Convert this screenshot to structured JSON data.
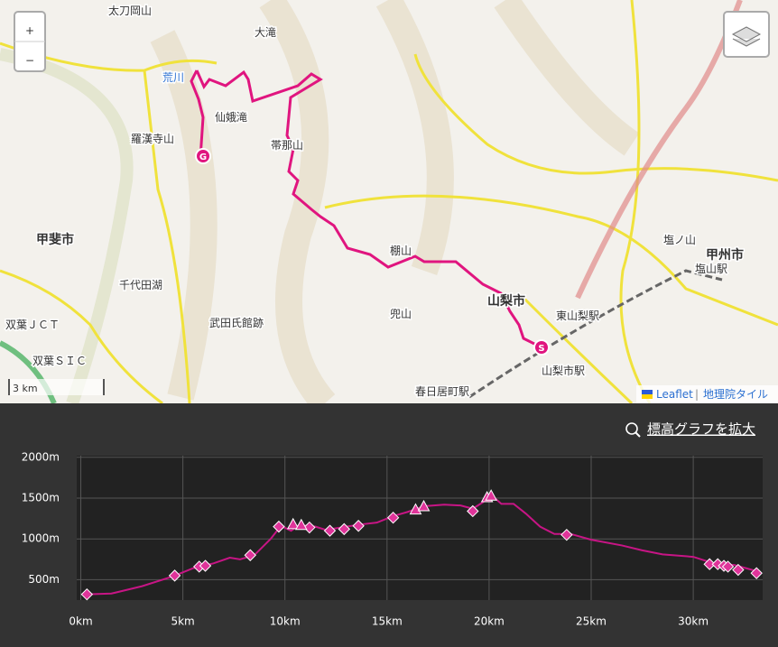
{
  "map": {
    "zoom_in": "+",
    "zoom_out": "−",
    "scale": "3 km",
    "attribution": [
      "Leaflet",
      "|",
      "地理院タイル"
    ],
    "labels": [
      "太刀岡山",
      "荒川",
      "仙娥滝",
      "羅漢寺山",
      "甲斐市",
      "千代田湖",
      "武田氏館跡",
      "双葉ＪＣＴ",
      "双葉ＳＩＣ",
      "棚山",
      "山梨市",
      "兜山",
      "東山梨駅",
      "甲州市",
      "塩山駅",
      "塩ノ山",
      "春日居町駅",
      "山梨市駅",
      "帯那山",
      "大滝"
    ]
  },
  "zoom_link": "標高グラフを拡大",
  "chart_data": {
    "type": "line",
    "xlim": [
      -0.2,
      33.4
    ],
    "ylim": [
      250,
      2020
    ],
    "xticks": [
      {
        "value": 0,
        "label": "0km"
      },
      {
        "value": 5,
        "label": "5km"
      },
      {
        "value": 10,
        "label": "10km"
      },
      {
        "value": 15,
        "label": "15km"
      },
      {
        "value": 20,
        "label": "20km"
      },
      {
        "value": 25,
        "label": "25km"
      },
      {
        "value": 30,
        "label": "30km"
      }
    ],
    "yticks": [
      {
        "value": 500,
        "label": "500m"
      },
      {
        "value": 1000,
        "label": "1000m"
      },
      {
        "value": 1500,
        "label": "1500m"
      },
      {
        "value": 2000,
        "label": "2000m"
      }
    ],
    "grid": true,
    "series": [
      {
        "style": "line",
        "color": "#c71585",
        "x": [
          0.3,
          1.5,
          3,
          4.5,
          5.5,
          6.5,
          7.3,
          7.8,
          8.5,
          9.3,
          9.8,
          10.3,
          10.7,
          11.5,
          12,
          13,
          13.8,
          14.5,
          15.3,
          16,
          16.8,
          17.8,
          18.6,
          19.2,
          19.7,
          20.1,
          20.6,
          21.2,
          21.8,
          22.5,
          23.2,
          24,
          25,
          26.5,
          27.5,
          28.5,
          30,
          31,
          32,
          32.6,
          33.3
        ],
        "values": [
          320,
          330,
          420,
          540,
          640,
          700,
          770,
          750,
          800,
          1000,
          1160,
          1100,
          1170,
          1150,
          1110,
          1150,
          1180,
          1200,
          1280,
          1330,
          1400,
          1420,
          1410,
          1370,
          1450,
          1540,
          1430,
          1430,
          1310,
          1150,
          1060,
          1060,
          990,
          920,
          860,
          810,
          780,
          700,
          680,
          640,
          590
        ]
      },
      {
        "style": "diamond",
        "color": "#e0349a",
        "x": [
          0.3,
          4.6,
          5.8,
          6.1,
          8.3,
          9.7,
          11.2,
          12.2,
          12.9,
          13.6,
          15.3,
          19.2,
          23.8,
          30.8,
          31.2,
          31.5,
          31.7,
          32.2,
          33.1
        ],
        "values": [
          320,
          550,
          660,
          670,
          800,
          1150,
          1140,
          1100,
          1120,
          1160,
          1260,
          1340,
          1050,
          690,
          690,
          670,
          660,
          620,
          580
        ]
      },
      {
        "style": "triangle",
        "color": "#e0349a",
        "x": [
          10.4,
          10.8,
          16.4,
          16.8,
          19.9,
          20.1
        ],
        "values": [
          1170,
          1160,
          1350,
          1390,
          1500,
          1520
        ]
      }
    ]
  }
}
